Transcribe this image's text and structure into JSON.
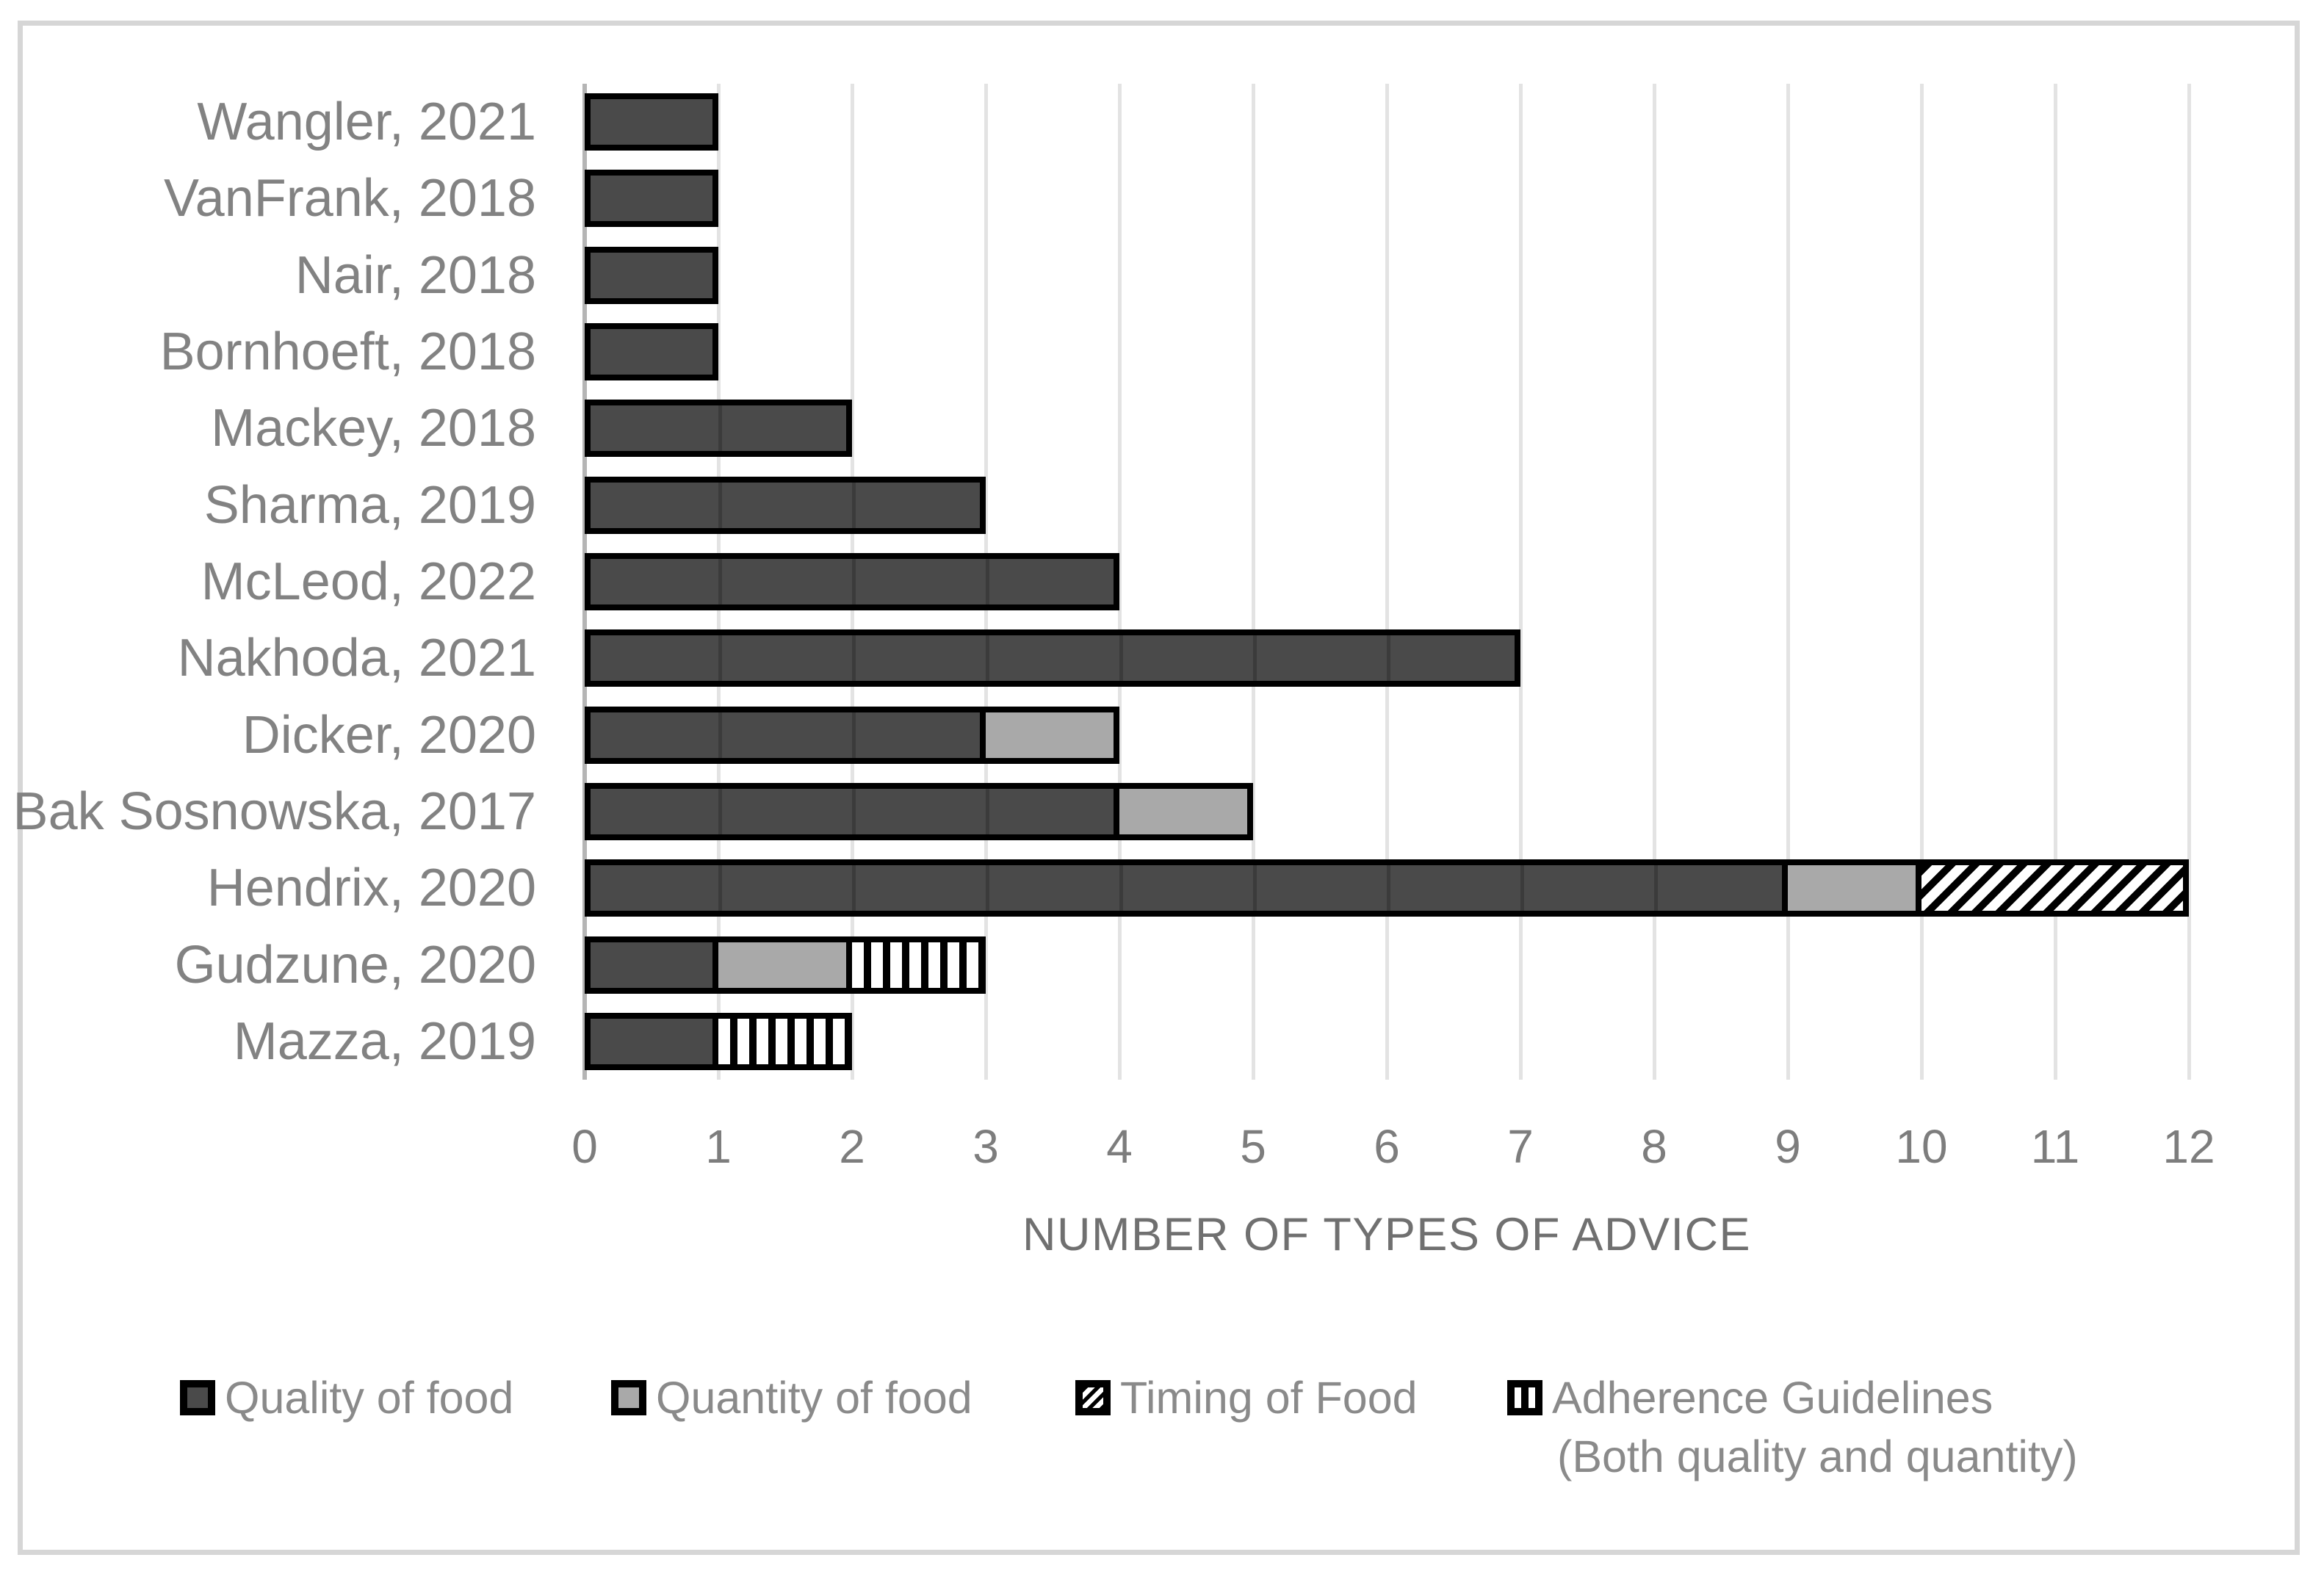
{
  "chart_data": {
    "type": "bar",
    "orientation": "horizontal",
    "stacked": true,
    "title": "",
    "xlabel": "NUMBER OF TYPES OF ADVICE",
    "ylabel": "",
    "xlim": [
      0,
      12
    ],
    "xticks": [
      0,
      1,
      2,
      3,
      4,
      5,
      6,
      7,
      8,
      9,
      10,
      11,
      12
    ],
    "grid": "vertical",
    "legend_position": "bottom",
    "categories": [
      "Wangler, 2021",
      "VanFrank, 2018",
      "Nair, 2018",
      "Bornhoeft, 2018",
      "Mackey, 2018",
      "Sharma, 2019",
      "McLeod, 2022",
      "Nakhoda, 2021",
      "Dicker, 2020",
      "Bak Sosnowska, 2017",
      "Hendrix, 2020",
      "Gudzune, 2020",
      "Mazza, 2019"
    ],
    "series": [
      {
        "name": "Quality of food",
        "style": "solid_dark",
        "color": "#4a4a4a",
        "values": [
          1,
          1,
          1,
          1,
          2,
          3,
          4,
          7,
          3,
          4,
          9,
          1,
          1
        ]
      },
      {
        "name": "Quantity of food",
        "style": "solid_light",
        "color": "#a9a9a9",
        "values": [
          0,
          0,
          0,
          0,
          0,
          0,
          0,
          0,
          1,
          1,
          1,
          1,
          0
        ]
      },
      {
        "name": "Timing of Food",
        "style": "diagonal_hatch",
        "color": "#000000",
        "values": [
          0,
          0,
          0,
          0,
          0,
          0,
          0,
          0,
          0,
          0,
          2,
          0,
          0
        ]
      },
      {
        "name": "Adherence Guidelines (Both quality and quantity)",
        "style": "vertical_stripes",
        "color": "#000000",
        "values": [
          0,
          0,
          0,
          0,
          0,
          0,
          0,
          0,
          0,
          0,
          0,
          1,
          1
        ]
      }
    ]
  },
  "legend": {
    "items": [
      {
        "label": "Quality of food",
        "style": "solid_dark"
      },
      {
        "label": "Quantity of food",
        "style": "solid_light"
      },
      {
        "label": "Timing of Food",
        "style": "diagonal_hatch"
      },
      {
        "label": "Adherence Guidelines",
        "style": "vertical_stripes"
      }
    ],
    "item4_line2": "(Both quality and quantity)"
  },
  "colors": {
    "bar_dark": "#4a4a4a",
    "bar_light": "#a9a9a9",
    "bar_border": "#000000",
    "gridline": "#e3e3e3",
    "axis_line": "#b5b5b5",
    "frame_border": "#d6d6d6",
    "label_text": "#828282",
    "tick_text": "#7d7d7d",
    "title_text": "#707070",
    "legend_text": "#8a8a8a"
  }
}
